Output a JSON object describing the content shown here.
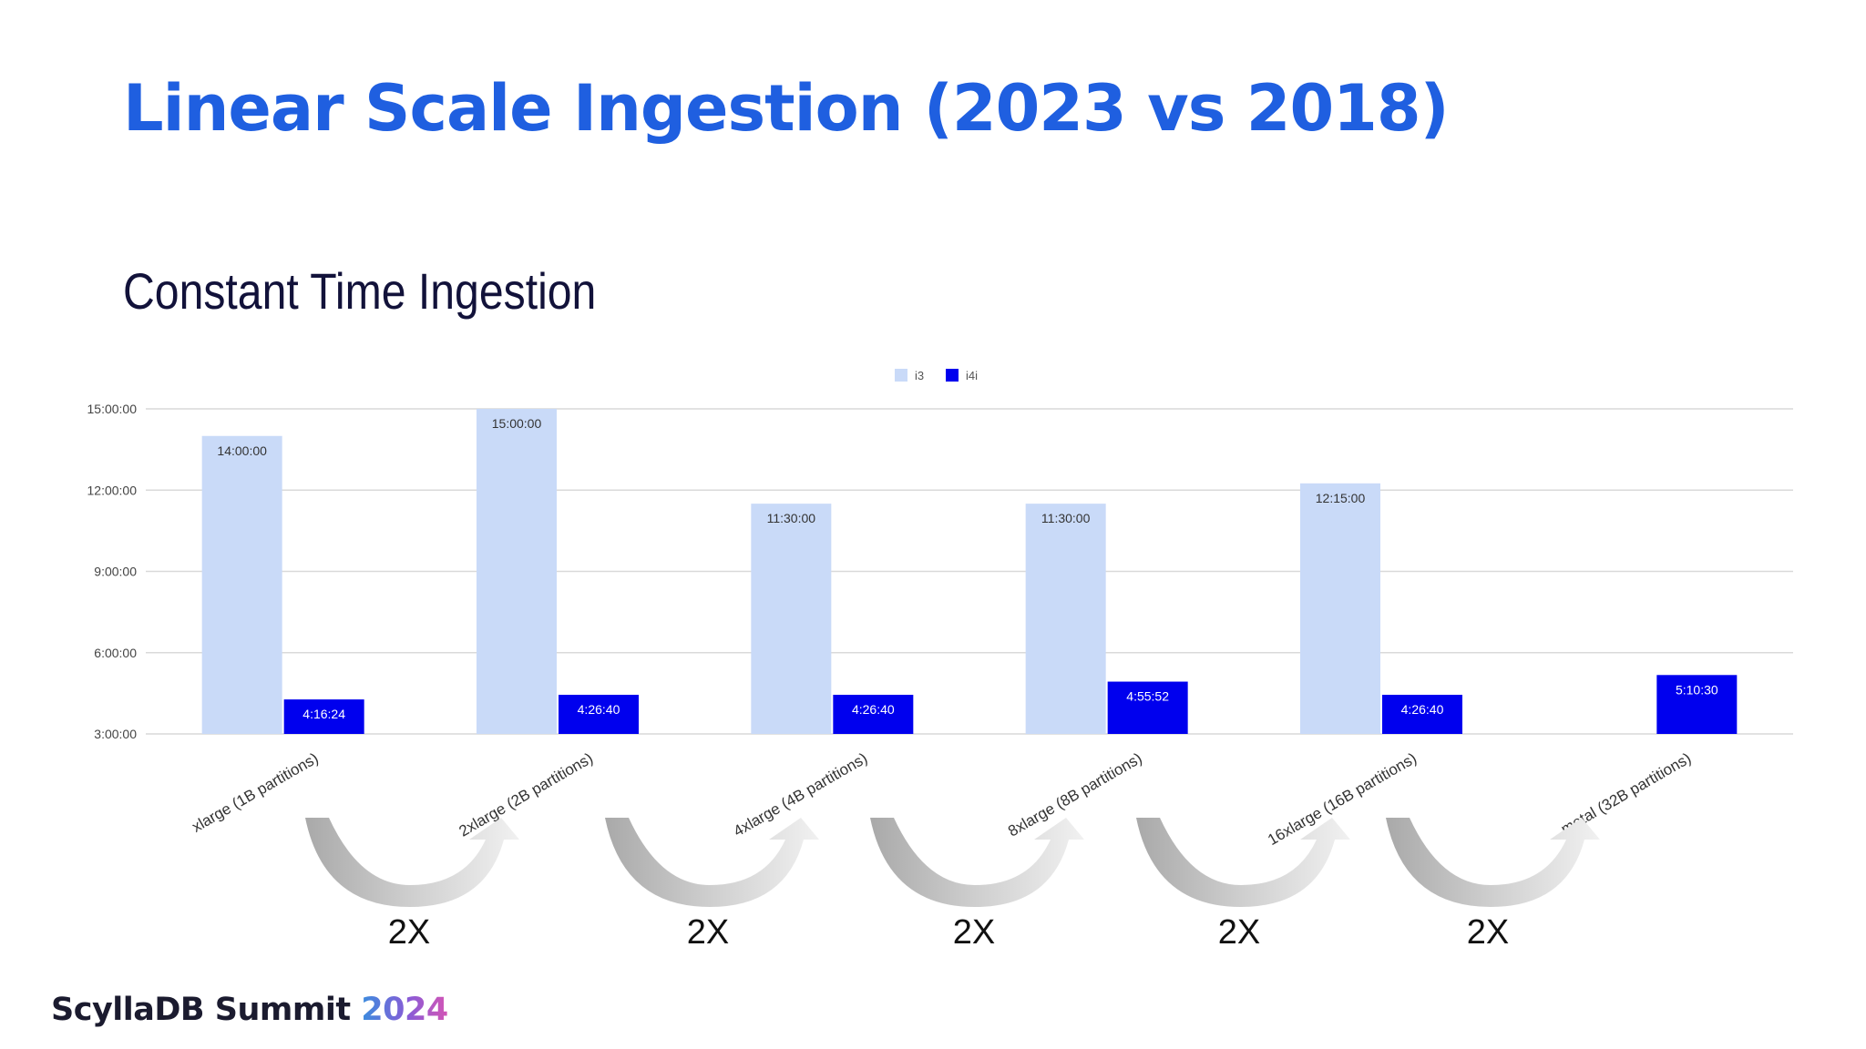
{
  "slide": {
    "title": "Linear Scale Ingestion (2023 vs 2018)",
    "subtitle": "Constant Time Ingestion",
    "title_color": "#1f5fe0",
    "subtitle_color": "#12123a"
  },
  "chart_data": {
    "type": "bar",
    "title": "",
    "xlabel": "",
    "ylabel": "",
    "value_unit": "hours",
    "ylim": [
      3,
      15
    ],
    "y_ticks": [
      {
        "value": 3,
        "label": "3:00:00"
      },
      {
        "value": 6,
        "label": "6:00:00"
      },
      {
        "value": 9,
        "label": "9:00:00"
      },
      {
        "value": 12,
        "label": "12:00:00"
      },
      {
        "value": 15,
        "label": "15:00:00"
      }
    ],
    "grid": true,
    "legend_position": "top-center",
    "categories": [
      "xlarge (1B partitions)",
      "2xlarge (2B partitions)",
      "4xlarge (4B partitions)",
      "8xlarge (8B partitions)",
      "16xlarge (16B partitions)",
      "metal (32B partitions)"
    ],
    "series": [
      {
        "name": "i3",
        "color": "#c9daf8",
        "label_color": "#333333",
        "values": [
          14.0,
          15.0,
          11.5,
          11.5,
          12.25,
          null
        ],
        "labels": [
          "14:00:00",
          "15:00:00",
          "11:30:00",
          "11:30:00",
          "12:15:00",
          null
        ]
      },
      {
        "name": "i4i",
        "color": "#0000ee",
        "label_color": "#ffffff",
        "values": [
          4.2733,
          4.4444,
          4.4444,
          4.9311,
          4.4444,
          5.175
        ],
        "labels": [
          "4:16:24",
          "4:26:40",
          "4:26:40",
          "4:55:52",
          "4:26:40",
          "5:10:30"
        ]
      }
    ],
    "annotations": {
      "factor_label": "2X",
      "arrow_count": 5
    }
  },
  "footer": {
    "brand_name": "ScyllaDB Summit ",
    "brand_year": "2024"
  }
}
